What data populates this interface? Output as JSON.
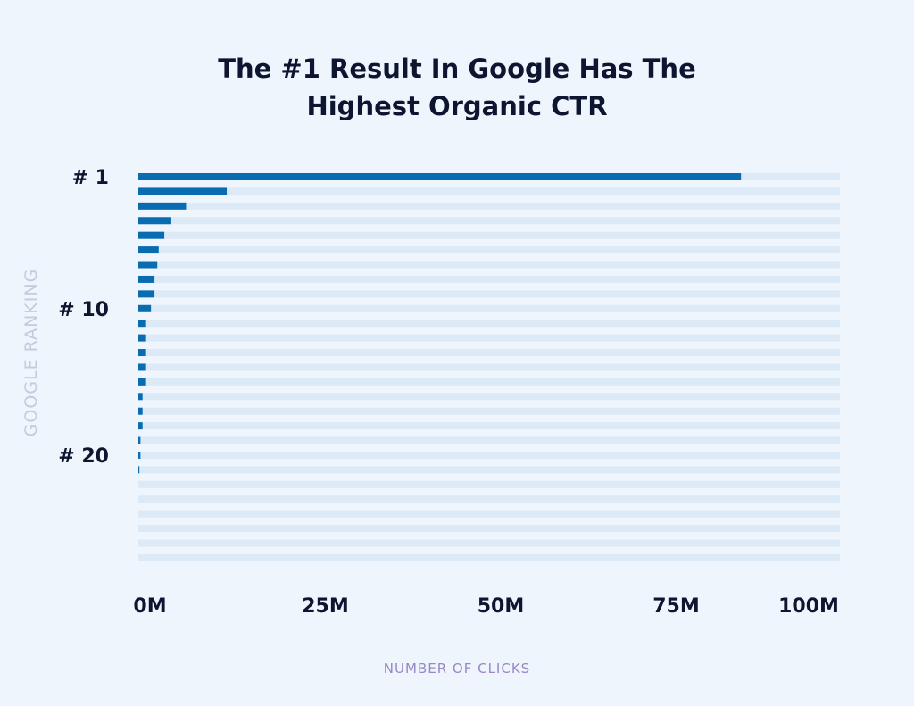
{
  "chart_data": {
    "type": "bar",
    "orientation": "horizontal",
    "title": "The #1 Result In Google Has The Highest Organic CTR",
    "title_lines": [
      "The #1 Result In Google Has The",
      "Highest Organic CTR"
    ],
    "xlabel": "NUMBER OF CLICKS",
    "ylabel": "GOOGLE RANKING",
    "categories": [
      1,
      2,
      3,
      4,
      5,
      6,
      7,
      8,
      9,
      10,
      11,
      12,
      13,
      14,
      15,
      16,
      17,
      18,
      19,
      20,
      21,
      22,
      23,
      24,
      25,
      26,
      27
    ],
    "values": [
      85.9,
      12.6,
      6.8,
      4.7,
      3.7,
      2.9,
      2.7,
      2.3,
      2.3,
      1.8,
      1.1,
      1.1,
      1.1,
      1.1,
      1.1,
      0.6,
      0.6,
      0.6,
      0.3,
      0.3,
      0.15,
      0,
      0,
      0,
      0,
      0,
      0
    ],
    "unit": "M clicks",
    "xlim": [
      0,
      100
    ],
    "x_ticks": [
      {
        "value": 0,
        "label": "0M"
      },
      {
        "value": 25,
        "label": "25M"
      },
      {
        "value": 50,
        "label": "50M"
      },
      {
        "value": 75,
        "label": "75M"
      },
      {
        "value": 100,
        "label": "100M"
      }
    ],
    "y_ticks": [
      {
        "rank": 1,
        "label": "# 1"
      },
      {
        "rank": 10,
        "label": "# 10"
      },
      {
        "rank": 20,
        "label": "# 20"
      }
    ],
    "grid": false,
    "colors": {
      "bar": "#0a6cb0",
      "track": "#dce9f7",
      "background": "#eff5fc"
    }
  }
}
